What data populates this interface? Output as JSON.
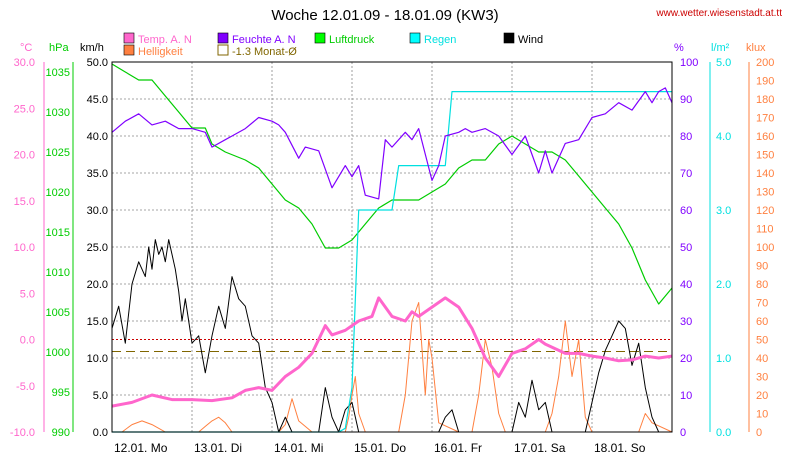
{
  "title": "Woche 12.01.09 - 18.01.09 (KW3)",
  "website": "www.wetter.wiesenstadt.at.tt",
  "legend": [
    {
      "key": "temp",
      "label": "Temp. A. N",
      "color": "#ff66cc"
    },
    {
      "key": "helligkeit",
      "label": "Helligkeit",
      "color": "#ff8040"
    },
    {
      "key": "feuchte",
      "label": "Feuchte A. N",
      "color": "#8000ff"
    },
    {
      "key": "avg",
      "label": "-1.3 Monat-Ø",
      "color": "#806600"
    },
    {
      "key": "luftdruck",
      "label": "Luftdruck",
      "color": "#00cc00"
    },
    {
      "key": "regen",
      "label": "Regen",
      "color": "#00e0e0"
    },
    {
      "key": "wind",
      "label": "Wind",
      "color": "#000000"
    }
  ],
  "axes": {
    "temp": {
      "unit": "°C",
      "ticks": [
        "30.0",
        "25.0",
        "20.0",
        "15.0",
        "10.0",
        "5.0",
        "0.0",
        "-5.0",
        "-10.0"
      ]
    },
    "pressure": {
      "unit": "hPa",
      "ticks": [
        "1035",
        "1030",
        "1025",
        "1020",
        "1015",
        "1010",
        "1005",
        "1000",
        "995",
        "990"
      ]
    },
    "wind": {
      "unit": "km/h",
      "ticks": [
        "50.0",
        "45.0",
        "40.0",
        "35.0",
        "30.0",
        "25.0",
        "20.0",
        "15.0",
        "10.0",
        "5.0",
        "0.0"
      ]
    },
    "humidity": {
      "unit": "%",
      "ticks": [
        "100",
        "90",
        "80",
        "70",
        "60",
        "50",
        "40",
        "30",
        "20",
        "10",
        "0"
      ]
    },
    "rain": {
      "unit": "l/m²",
      "ticks": [
        "5.0",
        "4.0",
        "3.0",
        "2.0",
        "1.0",
        "0.0"
      ]
    },
    "lux": {
      "unit": "klux",
      "ticks": [
        "200",
        "190",
        "180",
        "170",
        "160",
        "150",
        "140",
        "130",
        "120",
        "110",
        "100",
        "90",
        "80",
        "70",
        "60",
        "50",
        "40",
        "30",
        "20",
        "10",
        "0"
      ]
    }
  },
  "xlabels": [
    "12.01. Mo",
    "13.01. Di",
    "14.01. Mi",
    "15.01. Do",
    "16.01. Fr",
    "17.01. Sa",
    "18.01. So"
  ],
  "chart_data": {
    "type": "line",
    "title": "Woche 12.01.09 - 18.01.09 (KW3)",
    "x_unit": "hours from 12.01. 00:00",
    "x_range": [
      0,
      168
    ],
    "reference_lines": [
      {
        "name": "-1.3 Monat-Ø",
        "axis": "temp",
        "value": -1.3,
        "style": "dashed"
      },
      {
        "axis": "temp",
        "value": 0.0,
        "style": "dotted-red"
      }
    ],
    "series": [
      {
        "name": "Temp. A. N",
        "axis": "temp",
        "color": "#ff66cc",
        "x": [
          0,
          6,
          12,
          18,
          24,
          30,
          36,
          40,
          44,
          48,
          52,
          56,
          60,
          64,
          66,
          70,
          74,
          78,
          80,
          84,
          88,
          90,
          92,
          96,
          100,
          104,
          108,
          112,
          116,
          120,
          124,
          128,
          130,
          136,
          140,
          144,
          148,
          152,
          156,
          160,
          164,
          168
        ],
        "y": [
          -7.2,
          -6.8,
          -6.0,
          -6.5,
          -6.5,
          -6.6,
          -6.3,
          -5.5,
          -5.2,
          -5.5,
          -4.0,
          -3.0,
          -1.5,
          1.5,
          0.5,
          1.0,
          2.0,
          2.5,
          4.5,
          2.5,
          2.0,
          3.0,
          2.5,
          3.5,
          4.5,
          3.5,
          1.2,
          -2.0,
          -4.0,
          -1.5,
          -1.0,
          0.0,
          -0.5,
          -1.5,
          -1.5,
          -1.8,
          -2.0,
          -2.3,
          -2.2,
          -1.8,
          -2.0,
          -1.8
        ]
      },
      {
        "name": "Feuchte A. N",
        "axis": "humidity",
        "color": "#8000ff",
        "x": [
          0,
          4,
          8,
          12,
          16,
          20,
          24,
          28,
          30,
          34,
          36,
          40,
          44,
          48,
          50,
          52,
          56,
          58,
          62,
          66,
          70,
          72,
          74,
          76,
          80,
          82,
          84,
          88,
          90,
          92,
          96,
          98,
          100,
          104,
          106,
          108,
          112,
          116,
          120,
          124,
          128,
          130,
          132,
          136,
          140,
          144,
          148,
          152,
          156,
          160,
          162,
          164,
          166,
          168
        ],
        "y": [
          81,
          84,
          86,
          83,
          84,
          82,
          82,
          81,
          77,
          79,
          80,
          82,
          85,
          84,
          83,
          81,
          74,
          77,
          76,
          66,
          72,
          69,
          72,
          64,
          63,
          79,
          77,
          81,
          79,
          82,
          68,
          72,
          80,
          81,
          82,
          81,
          82,
          80,
          75,
          80,
          70,
          76,
          70,
          78,
          79,
          85,
          86,
          89,
          87,
          92,
          89,
          92,
          93,
          89
        ]
      },
      {
        "name": "Luftdruck",
        "axis": "pressure",
        "color": "#00cc00",
        "x": [
          0,
          4,
          8,
          12,
          16,
          18,
          20,
          24,
          28,
          30,
          34,
          40,
          44,
          48,
          52,
          56,
          60,
          64,
          68,
          72,
          76,
          80,
          84,
          88,
          92,
          96,
          100,
          104,
          108,
          112,
          116,
          120,
          124,
          128,
          132,
          136,
          140,
          144,
          148,
          152,
          156,
          160,
          164,
          168
        ],
        "y": [
          1036,
          1035,
          1034,
          1034,
          1032,
          1031,
          1030,
          1028,
          1028,
          1026,
          1025,
          1024,
          1023,
          1021,
          1019,
          1018,
          1016,
          1013,
          1013,
          1014,
          1016,
          1018,
          1019,
          1019,
          1019,
          1020,
          1021,
          1023,
          1024,
          1024,
          1026,
          1027,
          1026,
          1025,
          1025,
          1024,
          1022,
          1020,
          1018,
          1016,
          1013,
          1009,
          1006,
          1008
        ]
      },
      {
        "name": "Regen",
        "axis": "rain",
        "color": "#00e0e0",
        "x": [
          0,
          68,
          70,
          72,
          74,
          84,
          86,
          90,
          92,
          100,
          102,
          104,
          168
        ],
        "y": [
          0,
          0,
          0.05,
          0.6,
          3.0,
          3.0,
          3.6,
          3.6,
          3.6,
          3.6,
          4.6,
          4.6,
          4.6
        ]
      },
      {
        "name": "Wind",
        "axis": "wind",
        "color": "#000000",
        "x": [
          0,
          2,
          4,
          6,
          8,
          10,
          11,
          12,
          13,
          14,
          15,
          16,
          17,
          18,
          19,
          20,
          21,
          22,
          23,
          24,
          26,
          28,
          30,
          32,
          34,
          36,
          38,
          40,
          42,
          44,
          46,
          48,
          50,
          52,
          54,
          56,
          58,
          60,
          62,
          64,
          66,
          68,
          70,
          72,
          74,
          76,
          78,
          80,
          82,
          84,
          86,
          88,
          90,
          92,
          94,
          96,
          98,
          100,
          102,
          104,
          106,
          108,
          110,
          112,
          114,
          116,
          118,
          120,
          122,
          124,
          126,
          128,
          130,
          132,
          134,
          136,
          138,
          140,
          142,
          144,
          146,
          148,
          150,
          152,
          154,
          156,
          158,
          160,
          162,
          164,
          166,
          168
        ],
        "y": [
          14,
          17,
          12,
          20,
          23,
          21,
          25,
          22,
          26,
          24,
          25,
          23,
          26,
          24,
          22,
          19,
          15,
          18,
          15,
          12,
          13,
          8,
          13,
          17,
          14,
          21,
          18,
          17,
          13,
          12,
          6,
          4,
          0,
          2,
          0,
          0,
          0,
          0,
          0,
          6,
          2,
          0,
          3,
          4,
          0,
          0,
          0,
          0,
          0,
          0,
          0,
          0,
          0,
          0,
          0,
          0,
          0,
          2,
          3,
          0,
          0,
          0,
          0,
          0,
          0,
          0,
          0,
          0,
          4,
          2,
          7,
          3,
          4,
          0,
          0,
          0,
          0,
          0,
          0,
          4,
          8,
          11,
          13,
          15,
          14,
          9,
          12,
          6,
          2,
          0,
          0,
          0
        ]
      },
      {
        "name": "Helligkeit",
        "axis": "lux",
        "color": "#ff8040",
        "x": [
          0,
          3,
          6,
          9,
          12,
          14,
          16,
          18,
          20,
          22,
          24,
          26,
          28,
          30,
          32,
          34,
          36,
          38,
          40,
          42,
          44,
          48,
          50,
          52,
          54,
          56,
          60,
          62,
          64,
          66,
          68,
          70,
          71,
          72,
          73,
          74,
          76,
          80,
          82,
          84,
          86,
          88,
          90,
          92,
          93,
          94,
          95,
          96,
          98,
          104,
          106,
          108,
          110,
          112,
          114,
          116,
          118,
          120,
          128,
          130,
          132,
          134,
          136,
          138,
          140,
          142,
          144,
          146,
          148,
          150,
          152,
          154,
          156,
          158,
          160,
          162,
          168
        ],
        "y": [
          0,
          0,
          4,
          6,
          4,
          2,
          0,
          0,
          0,
          0,
          0,
          0,
          3,
          6,
          8,
          5,
          0,
          0,
          0,
          0,
          0,
          0,
          0,
          4,
          18,
          6,
          0,
          0,
          0,
          0,
          0,
          0,
          8,
          20,
          30,
          10,
          0,
          0,
          0,
          0,
          0,
          20,
          60,
          70,
          45,
          20,
          50,
          40,
          5,
          0,
          0,
          0,
          20,
          50,
          35,
          10,
          0,
          0,
          0,
          0,
          10,
          30,
          60,
          30,
          50,
          8,
          0,
          0,
          0,
          0,
          0,
          0,
          0,
          0,
          10,
          5,
          0
        ]
      }
    ]
  }
}
